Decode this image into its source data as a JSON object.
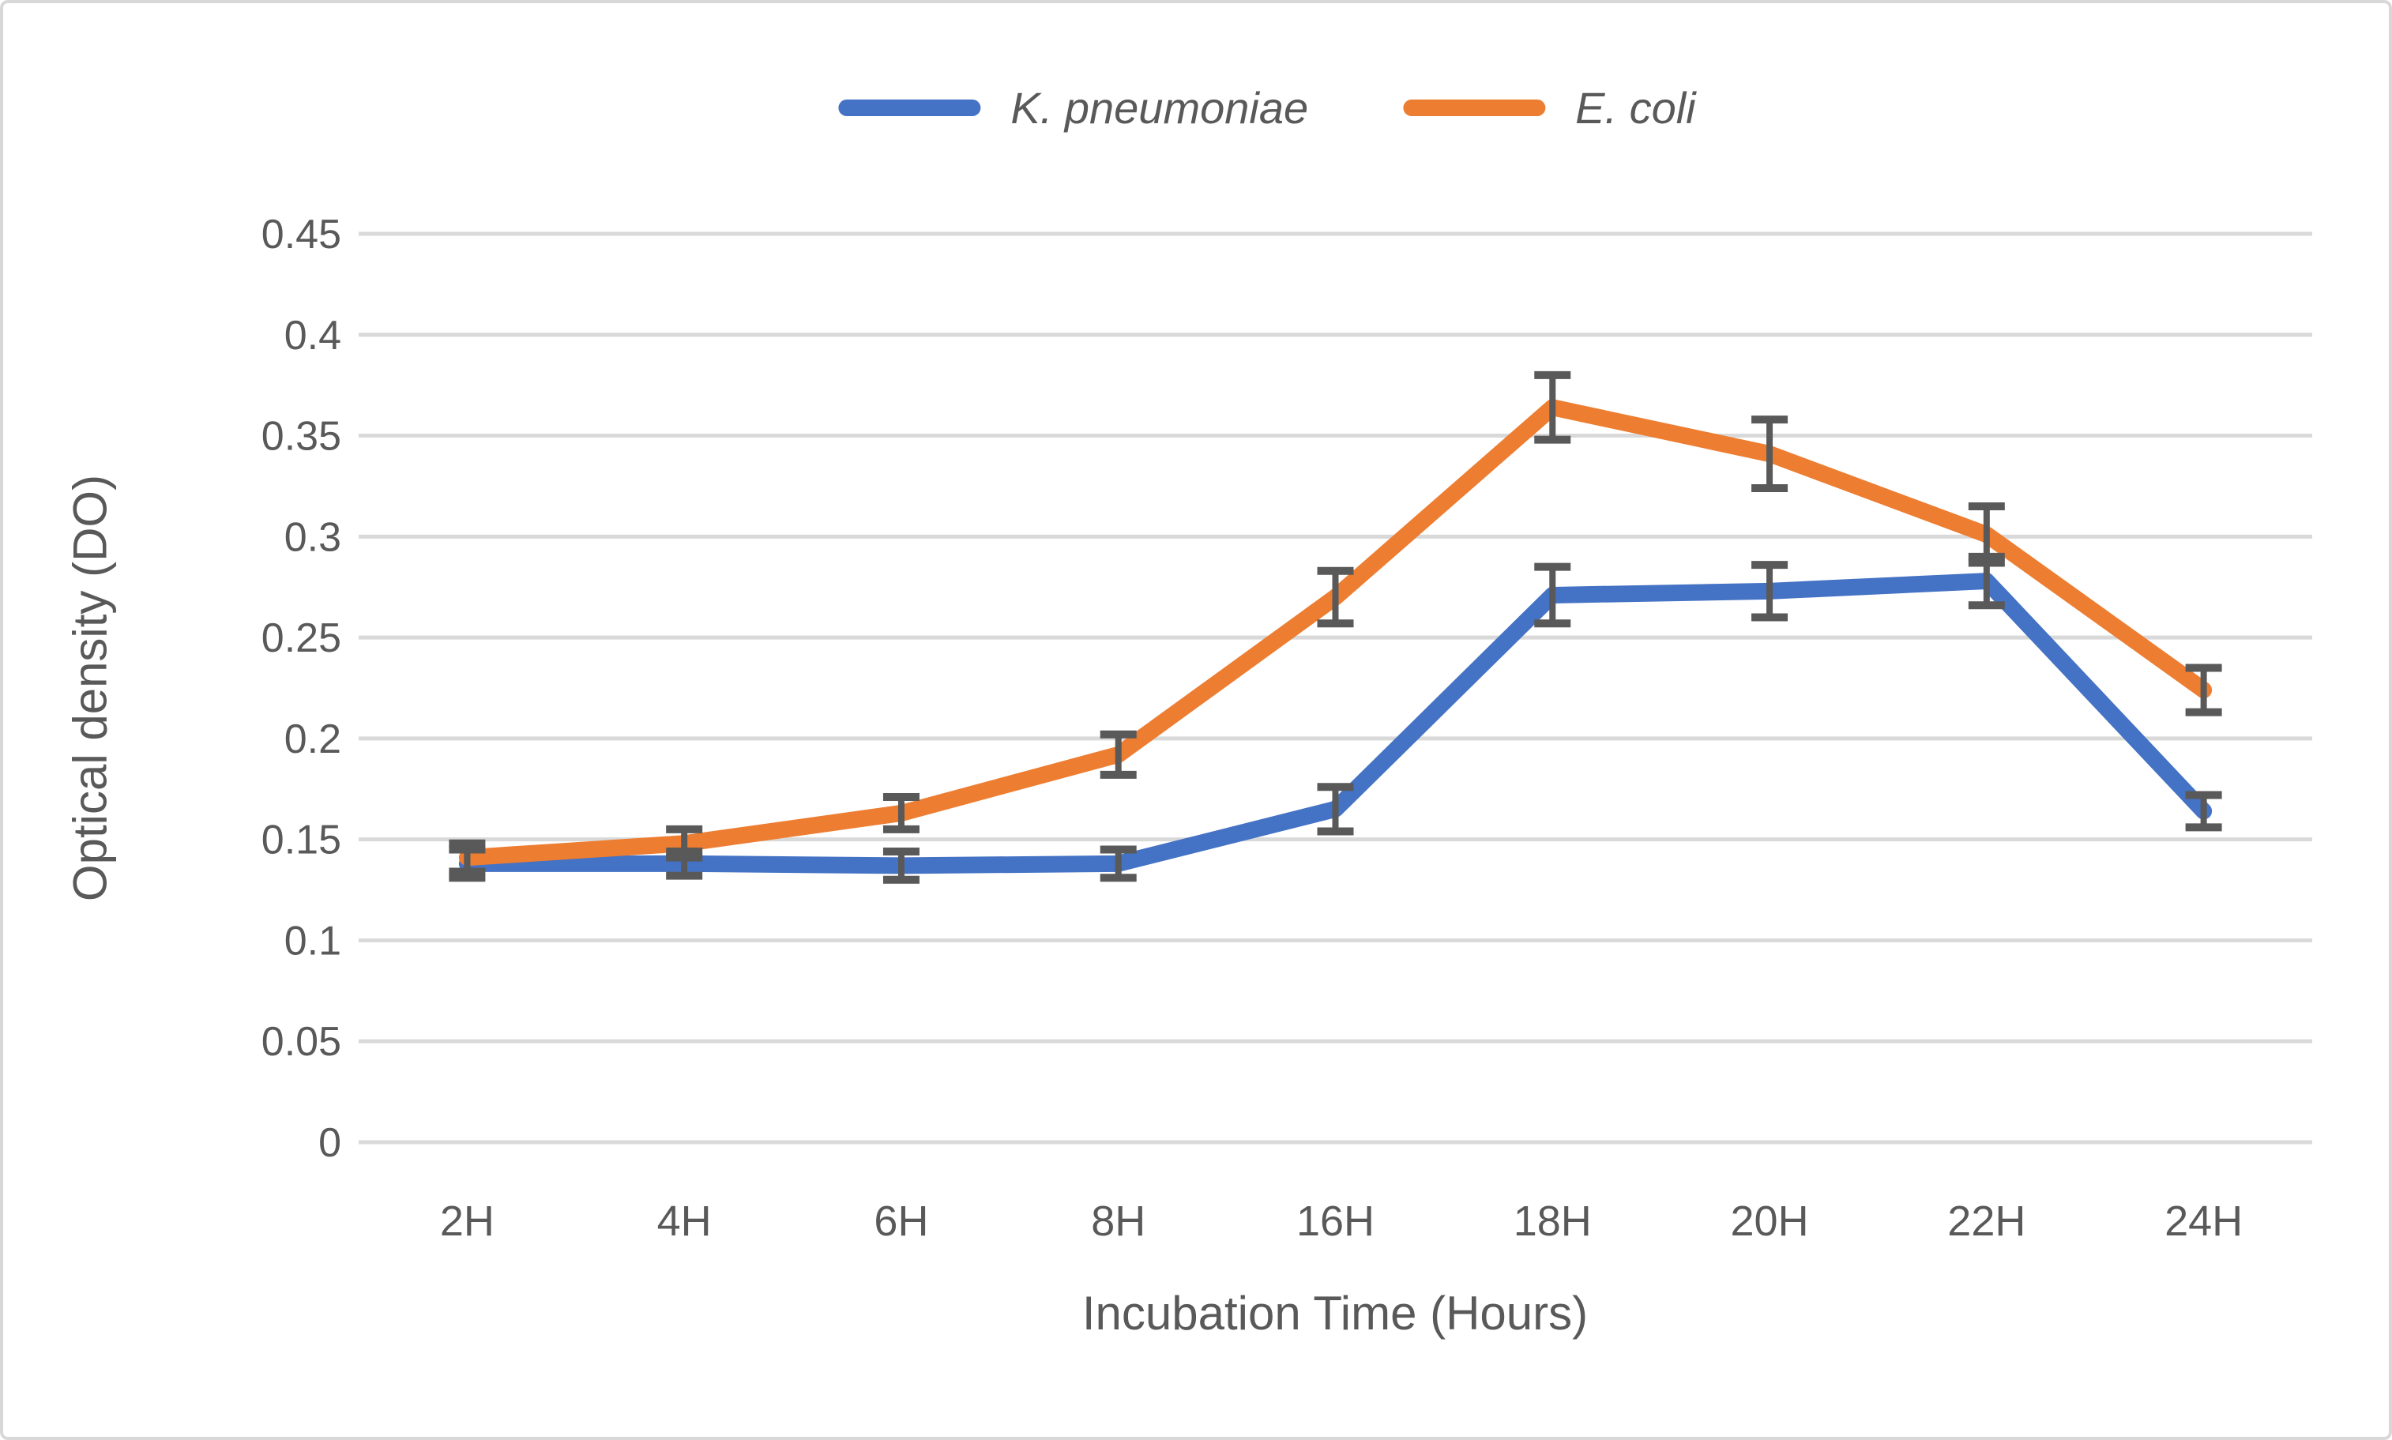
{
  "chart_data": {
    "type": "line",
    "title": "",
    "xlabel": "Incubation Time (Hours)",
    "ylabel": "Optical density (DO)",
    "categories": [
      "2H",
      "4H",
      "6H",
      "8H",
      "16H",
      "18H",
      "20H",
      "22H",
      "24H"
    ],
    "ylim": [
      0,
      0.45
    ],
    "y_tick_step": 0.05,
    "y_tick_labels": [
      "0",
      "0.05",
      "0.1",
      "0.15",
      "0.2",
      "0.25",
      "0.3",
      "0.35",
      "0.4",
      "0.45"
    ],
    "grid": true,
    "legend_position": "top-center",
    "series": [
      {
        "name": "K. pneumoniae",
        "color": "#4472C4",
        "values": [
          0.138,
          0.138,
          0.137,
          0.138,
          0.165,
          0.271,
          0.273,
          0.278,
          0.164
        ],
        "errors": [
          0.007,
          0.006,
          0.007,
          0.007,
          0.011,
          0.014,
          0.013,
          0.012,
          0.008
        ]
      },
      {
        "name": "E. coli",
        "color": "#ED7D31",
        "values": [
          0.141,
          0.148,
          0.163,
          0.192,
          0.27,
          0.364,
          0.341,
          0.301,
          0.224
        ],
        "errors": [
          0.007,
          0.007,
          0.008,
          0.01,
          0.013,
          0.016,
          0.017,
          0.014,
          0.011
        ]
      }
    ],
    "error_bars": true,
    "colors": {
      "gridline": "#D9D9D9",
      "error_bar": "#595959",
      "text": "#595959"
    }
  }
}
